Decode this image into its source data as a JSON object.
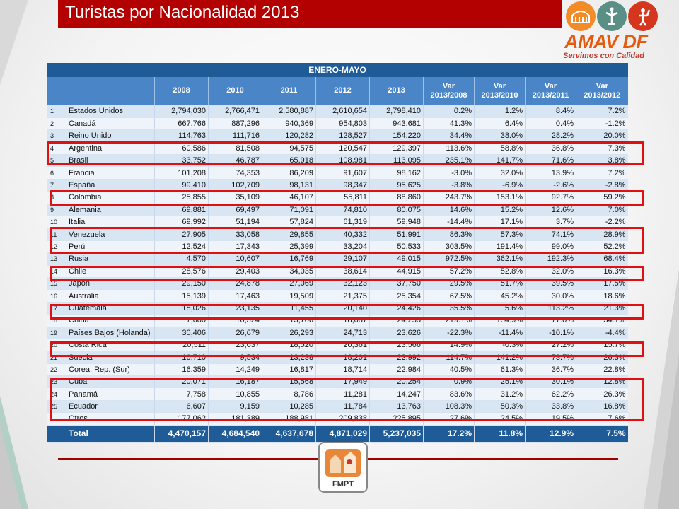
{
  "title": "Turistas por Nacionalidad 2013",
  "logo": {
    "name": "AMAV DF",
    "tagline": "Servimos con Calidad"
  },
  "footer_logo": "FMPT",
  "table": {
    "band": "ENERO-MAYO",
    "headers": [
      "",
      "",
      "2008",
      "2010",
      "2011",
      "2012",
      "2013",
      "Var\n2013/2008",
      "Var\n2013/2010",
      "Var\n2013/2011",
      "Var\n2013/2012"
    ],
    "rows": [
      [
        "1",
        "Estados Unidos",
        "2,794,030",
        "2,766,471",
        "2,580,887",
        "2,610,654",
        "2,798,410",
        "0.2%",
        "1.2%",
        "8.4%",
        "7.2%"
      ],
      [
        "2",
        "Canadá",
        "667,766",
        "887,296",
        "940,369",
        "954,803",
        "943,681",
        "41.3%",
        "6.4%",
        "0.4%",
        "-1.2%"
      ],
      [
        "3",
        "Reino Unido",
        "114,763",
        "111,716",
        "120,282",
        "128,527",
        "154,220",
        "34.4%",
        "38.0%",
        "28.2%",
        "20.0%"
      ],
      [
        "4",
        "Argentina",
        "60,586",
        "81,508",
        "94,575",
        "120,547",
        "129,397",
        "113.6%",
        "58.8%",
        "36.8%",
        "7.3%"
      ],
      [
        "5",
        "Brasil",
        "33,752",
        "46,787",
        "65,918",
        "108,981",
        "113,095",
        "235.1%",
        "141.7%",
        "71.6%",
        "3.8%"
      ],
      [
        "6",
        "Francia",
        "101,208",
        "74,353",
        "86,209",
        "91,607",
        "98,162",
        "-3.0%",
        "32.0%",
        "13.9%",
        "7.2%"
      ],
      [
        "7",
        "España",
        "99,410",
        "102,709",
        "98,131",
        "98,347",
        "95,625",
        "-3.8%",
        "-6.9%",
        "-2.6%",
        "-2.8%"
      ],
      [
        "8",
        "Colombia",
        "25,855",
        "35,109",
        "46,107",
        "55,811",
        "88,860",
        "243.7%",
        "153.1%",
        "92.7%",
        "59.2%"
      ],
      [
        "9",
        "Alemania",
        "69,881",
        "69,497",
        "71,091",
        "74,810",
        "80,075",
        "14.6%",
        "15.2%",
        "12.6%",
        "7.0%"
      ],
      [
        "10",
        "Italia",
        "69,992",
        "51,194",
        "57,824",
        "61,319",
        "59,948",
        "-14.4%",
        "17.1%",
        "3.7%",
        "-2.2%"
      ],
      [
        "11",
        "Venezuela",
        "27,905",
        "33,058",
        "29,855",
        "40,332",
        "51,991",
        "86.3%",
        "57.3%",
        "74.1%",
        "28.9%"
      ],
      [
        "12",
        "Perú",
        "12,524",
        "17,343",
        "25,399",
        "33,204",
        "50,533",
        "303.5%",
        "191.4%",
        "99.0%",
        "52.2%"
      ],
      [
        "13",
        "Rusia",
        "4,570",
        "10,607",
        "16,769",
        "29,107",
        "49,015",
        "972.5%",
        "362.1%",
        "192.3%",
        "68.4%"
      ],
      [
        "14",
        "Chile",
        "28,576",
        "29,403",
        "34,035",
        "38,614",
        "44,915",
        "57.2%",
        "52.8%",
        "32.0%",
        "16.3%"
      ],
      [
        "15",
        "Japón",
        "29,150",
        "24,878",
        "27,069",
        "32,123",
        "37,750",
        "29.5%",
        "51.7%",
        "39.5%",
        "17.5%"
      ],
      [
        "16",
        "Australia",
        "15,139",
        "17,463",
        "19,509",
        "21,375",
        "25,354",
        "67.5%",
        "45.2%",
        "30.0%",
        "18.6%"
      ],
      [
        "17",
        "Guatemala",
        "18,026",
        "23,135",
        "11,455",
        "20,140",
        "24,426",
        "35.5%",
        "5.6%",
        "113.2%",
        "21.3%"
      ],
      [
        "18",
        "China",
        "7,600",
        "10,324",
        "13,706",
        "18,087",
        "24,253",
        "219.1%",
        "134.9%",
        "77.0%",
        "34.1%"
      ],
      [
        "19",
        "Países Bajos (Holanda)",
        "30,406",
        "26,679",
        "26,293",
        "24,713",
        "23,626",
        "-22.3%",
        "-11.4%",
        "-10.1%",
        "-4.4%"
      ],
      [
        "20",
        "Costa Rica",
        "20,511",
        "23,637",
        "18,520",
        "20,361",
        "23,566",
        "14.9%",
        "-0.3%",
        "27.2%",
        "15.7%"
      ],
      [
        "21",
        "Suecia",
        "10,710",
        "9,534",
        "13,238",
        "18,201",
        "22,992",
        "114.7%",
        "141.2%",
        "73.7%",
        "26.3%"
      ],
      [
        "22",
        "Corea, Rep. (Sur)",
        "16,359",
        "14,249",
        "16,817",
        "18,714",
        "22,984",
        "40.5%",
        "61.3%",
        "36.7%",
        "22.8%"
      ],
      [
        "23",
        "Cuba",
        "20,071",
        "16,187",
        "15,568",
        "17,949",
        "20,254",
        "0.9%",
        "25.1%",
        "30.1%",
        "12.8%"
      ],
      [
        "24",
        "Panamá",
        "7,758",
        "10,855",
        "8,786",
        "11,281",
        "14,247",
        "83.6%",
        "31.2%",
        "62.2%",
        "26.3%"
      ],
      [
        "25",
        "Ecuador",
        "6,607",
        "9,159",
        "10,285",
        "11,784",
        "13,763",
        "108.3%",
        "50.3%",
        "33.8%",
        "16.8%"
      ],
      [
        "",
        "Otros",
        "177,062",
        "181,389",
        "188,981",
        "209,838",
        "225,895",
        "27.6%",
        "24.5%",
        "19.5%",
        "7.6%"
      ]
    ],
    "total": [
      "",
      "Total",
      "4,470,157",
      "4,684,540",
      "4,637,678",
      "4,871,029",
      "5,237,035",
      "17.2%",
      "11.8%",
      "12.9%",
      "7.5%"
    ]
  },
  "colors": {
    "title_bg": "#b30000",
    "header_band": "#1f5b96",
    "header": "#4a86c7",
    "highlight": "#e01010",
    "logo_orange": "#e65a0f"
  }
}
